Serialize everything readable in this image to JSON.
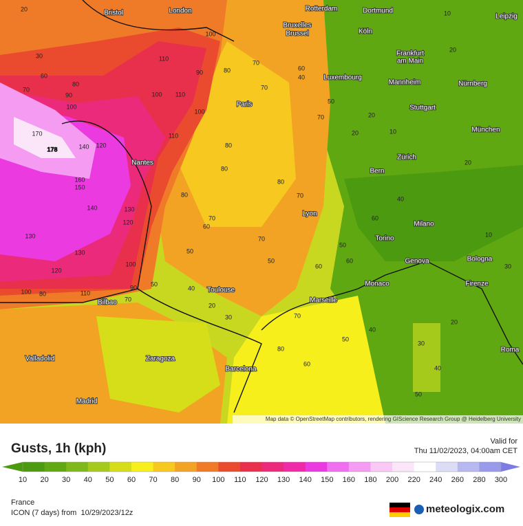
{
  "map": {
    "cities": [
      "Bristol",
      "London",
      "Rotterdam",
      "Dortmund",
      "Leipzig",
      "Bruxelles",
      "Brussel",
      "Köln",
      "Frankfurt",
      "am Main",
      "Luxembourg",
      "Mannheim",
      "Nürnberg",
      "Paris",
      "Stuttgart",
      "München",
      "Nantes",
      "Zürich",
      "Bern",
      "Lyon",
      "Milano",
      "Torino",
      "Bologna",
      "Genova",
      "Toulouse",
      "Monaco",
      "Firenze",
      "Marseille",
      "Bilbao",
      "Valladolid",
      "Zaragoza",
      "Barcelona",
      "Roma",
      "Madrid"
    ],
    "contour_labels": [
      20,
      30,
      60,
      70,
      90,
      80,
      100,
      170,
      178,
      140,
      120,
      160,
      150,
      140,
      130,
      130,
      120,
      130,
      120,
      100,
      100,
      80,
      110,
      90,
      70,
      100,
      110,
      110,
      90,
      100,
      110,
      100,
      80,
      70,
      70,
      80,
      80,
      80,
      60,
      70,
      50,
      70,
      50,
      50,
      40,
      20,
      30,
      70,
      80,
      60,
      50,
      40,
      30,
      40,
      50,
      10,
      20,
      20,
      40,
      50,
      60,
      70,
      80,
      70,
      60,
      50,
      60,
      40,
      60,
      20,
      10,
      30,
      20,
      10,
      20
    ],
    "attribution": "Map data © OpenStreetMap contributors, rendering GIScience Research Group @ Heidelberg University"
  },
  "legend": {
    "title": "Gusts, 1h (kph)",
    "valid_label": "Valid for",
    "valid_time": "Thu 11/02/2023, 04:00am CET",
    "ticks": [
      10,
      20,
      30,
      40,
      50,
      60,
      70,
      80,
      90,
      100,
      110,
      120,
      130,
      140,
      150,
      160,
      180,
      200,
      220,
      240,
      260,
      280,
      300
    ],
    "colors": [
      "#4c9a0f",
      "#62a812",
      "#7fb81a",
      "#a6ca1c",
      "#d6de1a",
      "#f7ef1c",
      "#f6c820",
      "#f3a323",
      "#ef7b29",
      "#ea4a2e",
      "#e8304c",
      "#ec2a7c",
      "#ee2aa6",
      "#ea3ae0",
      "#f06ff0",
      "#f59cf2",
      "#f9c8f6",
      "#fbe6f9",
      "#ffffff",
      "#dcdcf6",
      "#b8b8f0",
      "#9a9aea",
      "#7c7ce4"
    ]
  },
  "footer": {
    "region": "France",
    "model": "ICON (7 days) from  10/29/2023/12z",
    "brand": "meteologix.com"
  }
}
